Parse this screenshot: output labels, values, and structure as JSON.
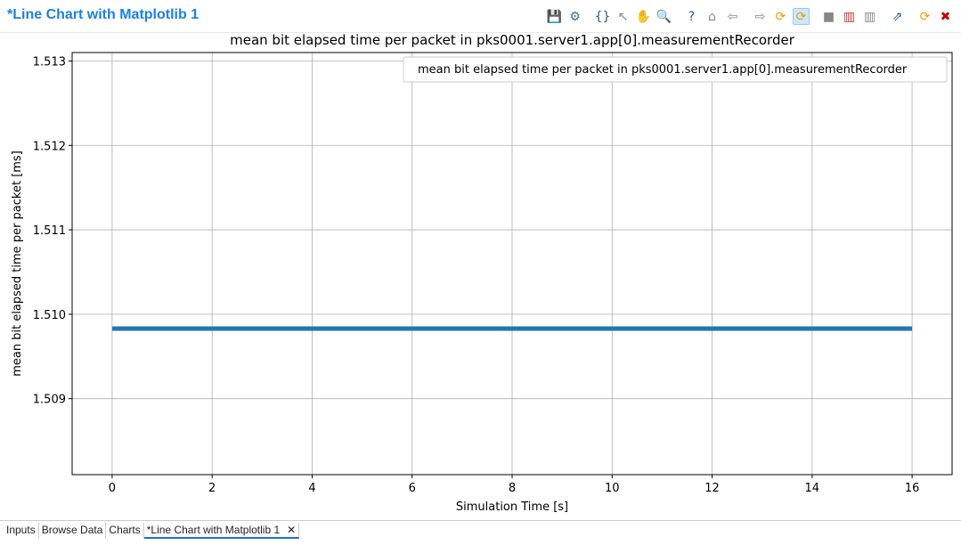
{
  "window": {
    "title": "*Line Chart with Matplotlib 1"
  },
  "toolbar": [
    "save-icon",
    "gear-icon",
    "braces-icon",
    "pointer-icon",
    "hand-icon",
    "zoom-icon",
    "help-icon",
    "home-icon",
    "back-icon",
    "forward-icon",
    "refresh-icon",
    "auto-refresh-icon",
    "stop-icon",
    "chart-icon",
    "chart-gray-icon",
    "export-icon",
    "copy-refresh-icon",
    "close-icon"
  ],
  "tabs": [
    {
      "label": "Inputs"
    },
    {
      "label": "Browse Data"
    },
    {
      "label": "Charts"
    },
    {
      "label": "*Line Chart with Matplotlib 1",
      "active": true
    }
  ],
  "chart_data": {
    "type": "line",
    "title": "mean bit elapsed time per packet in pks0001.server1.app[0].measurementRecorder",
    "xlabel": "Simulation Time [s]",
    "ylabel": "mean bit elapsed time per packet [ms]",
    "xlim": [
      -0.8,
      16.8
    ],
    "ylim": [
      1.5081,
      1.5131
    ],
    "xticks": [
      "0",
      "2",
      "4",
      "6",
      "8",
      "10",
      "12",
      "14",
      "16"
    ],
    "yticks": [
      "1.509",
      "1.510",
      "1.511",
      "1.512",
      "1.513"
    ],
    "grid": true,
    "legend": "top-right",
    "series": [
      {
        "name": "mean bit elapsed time per packet in pks0001.server1.app[0].measurementRecorder",
        "color": "#1f77b4",
        "x": [
          0,
          16
        ],
        "y": [
          1.50983,
          1.50983
        ]
      }
    ]
  }
}
